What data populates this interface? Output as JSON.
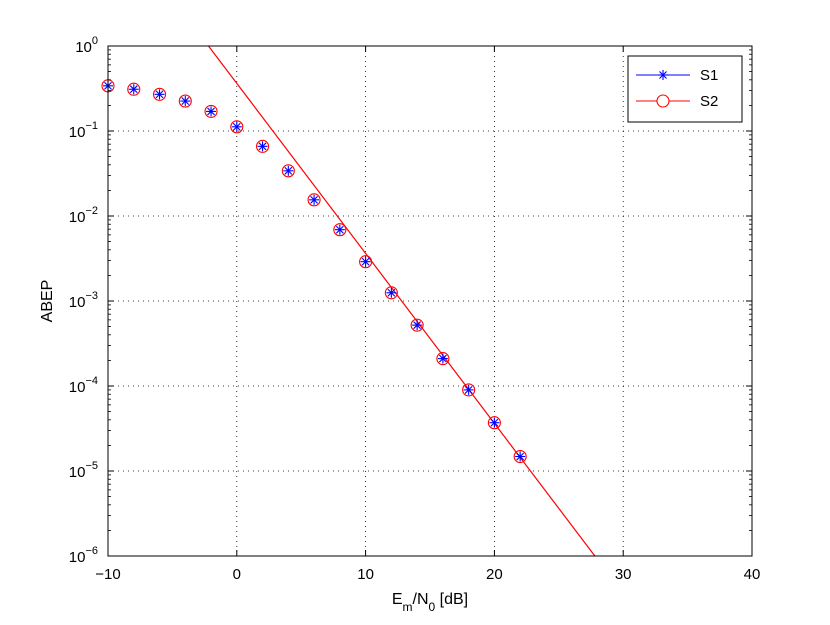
{
  "chart_data": {
    "type": "line",
    "xlabel": {
      "base": "E",
      "sub1": "m",
      "mid": "/N",
      "sub2": "0",
      "tail": " [dB]"
    },
    "ylabel": "ABEP",
    "xlim": [
      -10,
      40
    ],
    "ylim": [
      1e-06,
      1
    ],
    "yscale": "log",
    "grid": true,
    "legend_position": "top-right",
    "xticks": [
      {
        "value": -10,
        "label": "−10"
      },
      {
        "value": 0,
        "label": "0"
      },
      {
        "value": 10,
        "label": "10"
      },
      {
        "value": 20,
        "label": "20"
      },
      {
        "value": 30,
        "label": "30"
      },
      {
        "value": 40,
        "label": "40"
      }
    ],
    "yticks": [
      {
        "value": 1,
        "base": "10",
        "exp": "0"
      },
      {
        "value": 0.1,
        "base": "10",
        "exp": "−1"
      },
      {
        "value": 0.01,
        "base": "10",
        "exp": "−2"
      },
      {
        "value": 0.001,
        "base": "10",
        "exp": "−3"
      },
      {
        "value": 0.0001,
        "base": "10",
        "exp": "−4"
      },
      {
        "value": 1e-05,
        "base": "10",
        "exp": "−5"
      },
      {
        "value": 1e-06,
        "base": "10",
        "exp": "−6"
      }
    ],
    "series": [
      {
        "name": "S1",
        "color": "#0000ff",
        "marker": "asterisk",
        "line": false,
        "x": [
          -10,
          -8,
          -6,
          -4,
          -2,
          0,
          2,
          4,
          6,
          8,
          10,
          12,
          14,
          16,
          18,
          20,
          22
        ],
        "y": [
          0.34,
          0.31,
          0.27,
          0.225,
          0.17,
          0.112,
          0.066,
          0.034,
          0.0155,
          0.0069,
          0.0029,
          0.00125,
          0.00052,
          0.00021,
          9e-05,
          3.7e-05,
          1.48e-05
        ]
      },
      {
        "name": "S2",
        "color": "#ff0000",
        "marker": "circle",
        "line": false,
        "x": [
          -10,
          -8,
          -6,
          -4,
          -2,
          0,
          2,
          4,
          6,
          8,
          10,
          12,
          14,
          16,
          18,
          20,
          22
        ],
        "y": [
          0.34,
          0.31,
          0.27,
          0.225,
          0.17,
          0.112,
          0.066,
          0.034,
          0.0155,
          0.0069,
          0.0029,
          0.00125,
          0.00052,
          0.00021,
          9e-05,
          3.7e-05,
          1.48e-05
        ]
      },
      {
        "name": "",
        "color": "#ff0000",
        "marker": "none",
        "line": true,
        "x": [
          -2.2,
          27.8
        ],
        "y": [
          1,
          1e-06
        ]
      }
    ]
  }
}
